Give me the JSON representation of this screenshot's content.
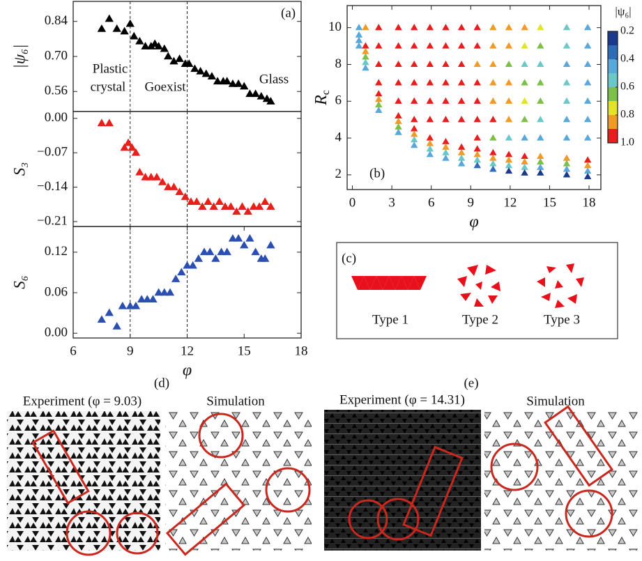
{
  "chart_data": [
    {
      "type": "scatter",
      "ylabel": "|ψ₆|",
      "color": "#000000",
      "x": [
        7.5,
        7.9,
        8.3,
        8.7,
        9.0,
        9.2,
        9.5,
        9.8,
        10.1,
        10.3,
        10.5,
        10.8,
        11.0,
        11.3,
        11.6,
        11.9,
        12.1,
        12.4,
        12.7,
        13.0,
        13.3,
        13.6,
        13.9,
        14.1,
        14.4,
        14.7,
        15.0,
        15.3,
        15.6,
        15.9,
        16.2,
        16.4
      ],
      "values": [
        0.81,
        0.85,
        0.81,
        0.8,
        0.83,
        0.78,
        0.76,
        0.74,
        0.74,
        0.75,
        0.74,
        0.73,
        0.7,
        0.68,
        0.69,
        0.67,
        0.67,
        0.65,
        0.64,
        0.63,
        0.62,
        0.6,
        0.6,
        0.6,
        0.59,
        0.59,
        0.58,
        0.55,
        0.55,
        0.54,
        0.53,
        0.52
      ],
      "xlim": [
        6,
        18
      ],
      "ylim": [
        0.48,
        0.92
      ],
      "yticks": [
        0.56,
        {
          "value": 0.7,
          "label": "0.70"
        },
        0.84
      ],
      "vlines": [
        9,
        12
      ],
      "annotations": [
        "(a)",
        "Plastic",
        "crystal",
        "Goexist",
        "Glass"
      ]
    },
    {
      "type": "scatter",
      "ylabel": "S₃",
      "color": "#e8201c",
      "x": [
        7.5,
        7.9,
        8.7,
        8.9,
        9.1,
        9.3,
        9.5,
        9.8,
        10.1,
        10.4,
        10.7,
        11.0,
        11.3,
        11.6,
        11.9,
        12.2,
        12.5,
        12.8,
        13.1,
        13.4,
        13.7,
        14.0,
        14.3,
        14.6,
        14.9,
        15.2,
        15.5,
        15.8,
        16.1,
        16.4
      ],
      "values": [
        -0.01,
        -0.01,
        -0.06,
        -0.05,
        -0.06,
        -0.07,
        -0.11,
        -0.12,
        -0.12,
        -0.12,
        -0.13,
        -0.14,
        -0.14,
        -0.15,
        -0.16,
        -0.17,
        -0.17,
        -0.18,
        -0.17,
        -0.18,
        -0.17,
        -0.18,
        -0.18,
        -0.19,
        -0.18,
        -0.19,
        -0.18,
        -0.18,
        -0.17,
        -0.18
      ],
      "xlim": [
        6,
        18
      ],
      "ylim": [
        -0.22,
        0.014
      ],
      "yticks": [
        {
          "value": 0,
          "label": "0.00"
        },
        {
          "value": -0.07,
          "label": "−0.07"
        },
        {
          "value": -0.14,
          "label": "−0.14"
        },
        {
          "value": -0.21,
          "label": "−0.21"
        }
      ],
      "vlines": [
        9,
        12
      ]
    },
    {
      "type": "scatter",
      "ylabel": "S₆",
      "color": "#2b4fb0",
      "xlabel": "φ",
      "x": [
        7.5,
        7.9,
        8.3,
        8.6,
        9.0,
        9.3,
        9.6,
        9.9,
        10.2,
        10.5,
        10.8,
        11.1,
        11.4,
        11.7,
        12.0,
        12.3,
        12.6,
        12.9,
        13.2,
        13.5,
        13.8,
        14.1,
        14.4,
        14.7,
        15.0,
        15.3,
        15.6,
        15.9,
        16.1,
        16.4
      ],
      "values": [
        0.02,
        0.03,
        0.01,
        0.04,
        0.04,
        0.04,
        0.05,
        0.05,
        0.05,
        0.06,
        0.06,
        0.06,
        0.08,
        0.09,
        0.1,
        0.1,
        0.11,
        0.12,
        0.12,
        0.11,
        0.12,
        0.12,
        0.14,
        0.14,
        0.13,
        0.14,
        0.12,
        0.11,
        0.11,
        0.13
      ],
      "xlim": [
        6,
        18
      ],
      "ylim": [
        -0.007,
        0.158
      ],
      "xticks": [
        6,
        9,
        12,
        15,
        18
      ],
      "yticks": [
        {
          "value": 0,
          "label": "0.00"
        },
        0.06,
        0.12
      ],
      "vlines": [
        9,
        12
      ]
    },
    {
      "type": "scatter",
      "xlabel": "φ",
      "ylabel": {
        "main": "R",
        "sub": "c"
      },
      "panel_label": "(b)",
      "xlim": [
        -0.4,
        18.9
      ],
      "ylim": [
        1.2,
        11.2
      ],
      "xticks": [
        0,
        3,
        6,
        9,
        12,
        15,
        18
      ],
      "yticks": [
        2,
        4,
        6,
        8,
        10
      ],
      "columns": [
        {
          "x": 0.5,
          "values": [
            10,
            9.6,
            9.3,
            9.0
          ],
          "c": [
            0.5,
            0.5,
            0.45,
            0.5
          ]
        },
        {
          "x": 1,
          "values": [
            10,
            9,
            8.7,
            8.4,
            8.1,
            7.8
          ],
          "c": [
            0.9,
            1.0,
            0.8,
            0.7,
            0.6,
            0.5
          ]
        },
        {
          "x": 2,
          "values": [
            10,
            9,
            8,
            7,
            6.4,
            6.1,
            5.8,
            5.5
          ],
          "c": [
            1,
            1,
            1,
            1,
            1,
            0.8,
            0.7,
            0.5
          ]
        },
        {
          "x": 3.5,
          "values": [
            10,
            9,
            8,
            7,
            6,
            5.2,
            4.9,
            4.6,
            4.3
          ],
          "c": [
            1,
            1,
            1,
            1,
            1,
            1,
            0.8,
            0.7,
            0.5
          ]
        },
        {
          "x": 4.7,
          "values": [
            10,
            9,
            8,
            7,
            6,
            5,
            4.5,
            4.2,
            3.9,
            3.6
          ],
          "c": [
            1,
            1,
            1,
            1,
            1,
            1,
            1,
            0.8,
            0.6,
            0.4
          ]
        },
        {
          "x": 5.9,
          "values": [
            10,
            9,
            8,
            7,
            6,
            5,
            4.0,
            3.7,
            3.4,
            3.1
          ],
          "c": [
            1,
            1,
            1,
            1,
            1,
            1,
            1,
            0.8,
            0.6,
            0.4
          ]
        },
        {
          "x": 7.1,
          "values": [
            10,
            9,
            8,
            7,
            6,
            5,
            3.8,
            3.5,
            3.2,
            2.9
          ],
          "c": [
            1,
            1,
            1,
            1,
            1,
            1,
            1,
            0.8,
            0.6,
            0.4
          ]
        },
        {
          "x": 8.3,
          "values": [
            10,
            9,
            8,
            7,
            6,
            5,
            3.5,
            3.2,
            2.9,
            2.6
          ],
          "c": [
            1,
            1,
            1,
            1,
            1,
            1,
            1,
            0.8,
            0.6,
            0.4
          ]
        },
        {
          "x": 9.5,
          "values": [
            10,
            9,
            8,
            7,
            6,
            5,
            4,
            3.4,
            3.1,
            2.8,
            2.5
          ],
          "c": [
            0.95,
            0.95,
            0.9,
            0.95,
            1,
            1,
            1,
            1,
            0.8,
            0.6,
            0.35
          ]
        },
        {
          "x": 10.7,
          "values": [
            10,
            9,
            8,
            7,
            6,
            5,
            4,
            3.2,
            2.9,
            2.6,
            2.3
          ],
          "c": [
            0.9,
            0.9,
            0.8,
            0.9,
            0.9,
            1,
            0.7,
            1,
            0.8,
            0.6,
            0.35
          ]
        },
        {
          "x": 11.9,
          "values": [
            10,
            9,
            8,
            7,
            6,
            5,
            4,
            3.1,
            2.8,
            2.5,
            2.2
          ],
          "c": [
            0.85,
            0.8,
            0.7,
            0.8,
            0.8,
            0.8,
            0.6,
            1,
            0.8,
            0.6,
            0.3
          ]
        },
        {
          "x": 13.1,
          "values": [
            10,
            9,
            8,
            7,
            6,
            5,
            4,
            3.0,
            2.7,
            2.4,
            2.1
          ],
          "c": [
            0.8,
            0.75,
            0.6,
            0.7,
            0.75,
            0.7,
            0.5,
            1,
            0.8,
            0.6,
            0.3
          ]
        },
        {
          "x": 14.3,
          "values": [
            10,
            9,
            8,
            7,
            6,
            5,
            4,
            3.0,
            2.7,
            2.4,
            2.1
          ],
          "c": [
            0.75,
            0.7,
            0.55,
            0.7,
            0.7,
            0.6,
            0.5,
            0.9,
            0.7,
            0.5,
            0.3
          ]
        },
        {
          "x": 16.3,
          "values": [
            10,
            9,
            8,
            7,
            6,
            5,
            4,
            2.9,
            2.6,
            2.3,
            2.0
          ],
          "c": [
            0.6,
            0.6,
            0.5,
            0.6,
            0.6,
            0.5,
            0.5,
            0.9,
            0.7,
            0.5,
            0.3
          ]
        },
        {
          "x": 17.9,
          "values": [
            10,
            9,
            8,
            7,
            6,
            5,
            4,
            2.8,
            2.5,
            2.2,
            1.9
          ],
          "c": [
            0.5,
            0.45,
            0.45,
            0.5,
            0.5,
            0.45,
            0.45,
            1,
            0.8,
            0.5,
            0.25
          ]
        }
      ],
      "colorbar": {
        "title": "|ψ₆|",
        "clim": [
          0.2,
          1.0
        ],
        "colors": [
          "#1b3a8c",
          "#2e6db6",
          "#5aa8d9",
          "#6cc7c9",
          "#7dbf4a",
          "#e3e32a",
          "#f09a28",
          "#e61e1e"
        ],
        "ticks": [
          0.2,
          0.4,
          0.6,
          0.8,
          {
            "value": 1,
            "label": "1.0"
          }
        ]
      }
    }
  ],
  "panel_c": {
    "label": "(c)",
    "types": [
      "Type 1",
      "Type 2",
      "Type 3"
    ]
  },
  "panel_d": {
    "label": "(d)",
    "left_title": "Experiment (φ = 9.03)",
    "right_title": "Simulation"
  },
  "panel_e": {
    "label": "(e)",
    "left_title": "Experiment (φ = 14.31)",
    "right_title": "Simulation"
  }
}
